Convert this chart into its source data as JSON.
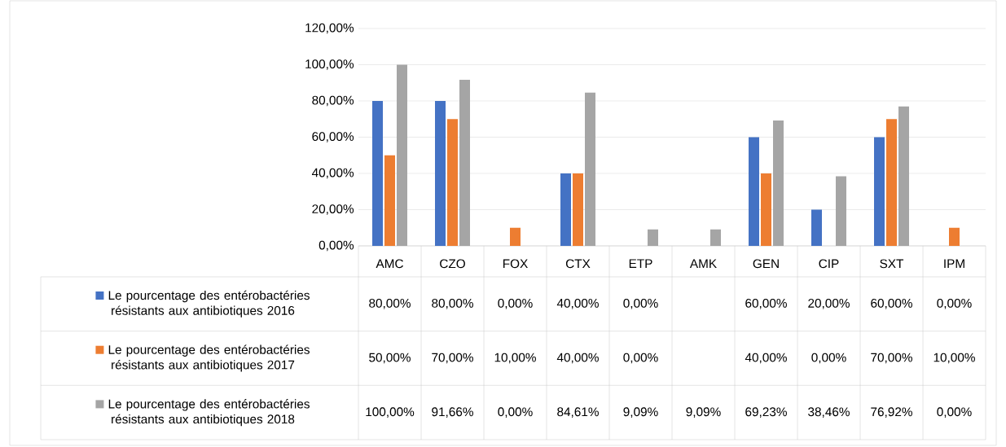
{
  "chart_data": {
    "type": "bar",
    "categories": [
      "AMC",
      "CZO",
      "FOX",
      "CTX",
      "ETP",
      "AMK",
      "GEN",
      "CIP",
      "SXT",
      "IPM"
    ],
    "series": [
      {
        "name": "Le pourcentage des entérobactéries résistants aux antibiotiques 2016",
        "color": "#4472c4",
        "values": [
          80,
          80,
          0,
          40,
          0,
          null,
          60,
          20,
          60,
          0
        ],
        "value_labels": [
          "80,00%",
          "80,00%",
          "0,00%",
          "40,00%",
          "0,00%",
          null,
          "60,00%",
          "20,00%",
          "60,00%",
          "0,00%"
        ]
      },
      {
        "name": "Le pourcentage des entérobactéries résistants aux antibiotiques 2017",
        "color": "#ed7d31",
        "values": [
          50,
          70,
          10,
          40,
          0,
          null,
          40,
          0,
          70,
          10
        ],
        "value_labels": [
          "50,00%",
          "70,00%",
          "10,00%",
          "40,00%",
          "0,00%",
          null,
          "40,00%",
          "0,00%",
          "70,00%",
          "10,00%"
        ]
      },
      {
        "name": "Le pourcentage des entérobactéries résistants aux antibiotiques 2018",
        "color": "#a5a5a5",
        "values": [
          100,
          91.66,
          0,
          84.61,
          9.09,
          9.09,
          69.23,
          38.46,
          76.92,
          0
        ],
        "value_labels": [
          "100,00%",
          "91,66%",
          "0,00%",
          "84,61%",
          "9,09%",
          "9,09%",
          "69,23%",
          "38,46%",
          "76,92%",
          "0,00%"
        ]
      }
    ],
    "ylim": [
      0,
      120
    ],
    "yticks": [
      {
        "value": 0,
        "label": "0,00%"
      },
      {
        "value": 20,
        "label": "20,00%"
      },
      {
        "value": 40,
        "label": "40,00%"
      },
      {
        "value": 60,
        "label": "60,00%"
      },
      {
        "value": 80,
        "label": "80,00%"
      },
      {
        "value": 100,
        "label": "100,00%"
      },
      {
        "value": 120,
        "label": "120,00%"
      }
    ],
    "grid": "y",
    "legend": "bottom"
  }
}
